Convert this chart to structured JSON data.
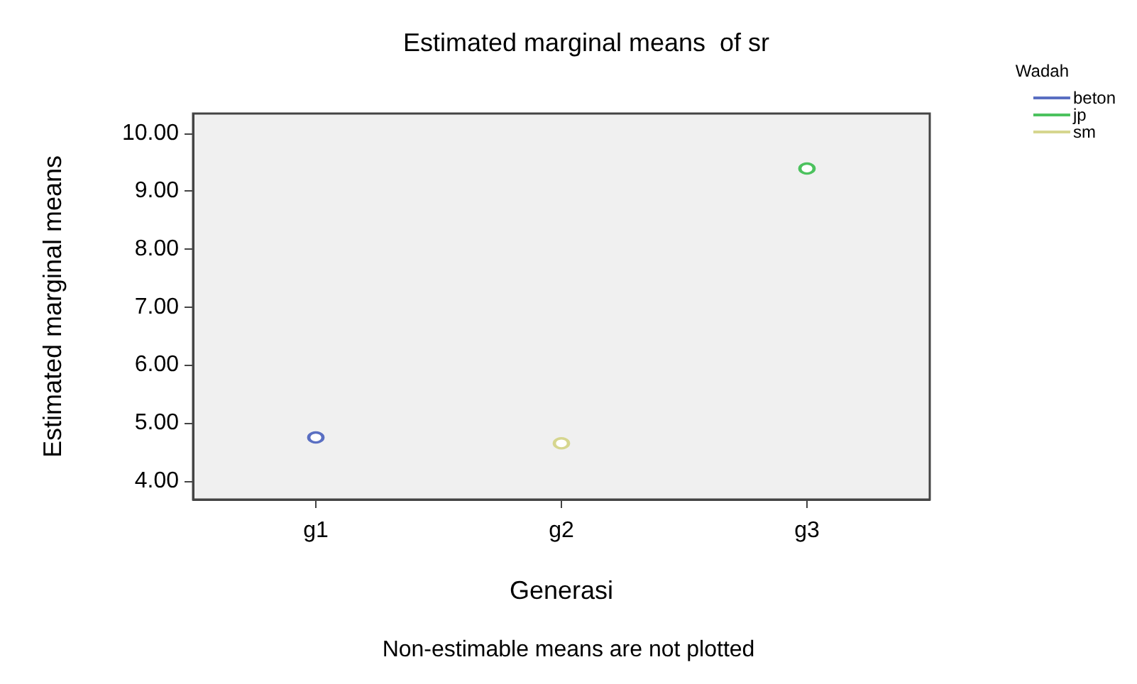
{
  "chart_data": {
    "type": "line",
    "title": "Estimated marginal means  of sr",
    "xlabel": "Generasi",
    "ylabel": "Estimated marginal means",
    "legend_title": "Wadah",
    "annotations": [
      "Non-estimable means are not plotted"
    ],
    "categories": [
      "g1",
      "g2",
      "g3"
    ],
    "series": [
      {
        "name": "beton",
        "color": "#5a6fc2",
        "values": [
          4.75,
          null,
          null
        ]
      },
      {
        "name": "jp",
        "color": "#4cc25e",
        "values": [
          null,
          null,
          9.39
        ]
      },
      {
        "name": "sm",
        "color": "#d6d68f",
        "values": [
          null,
          4.65,
          null
        ]
      }
    ],
    "ylim": [
      3.68,
      10.34
    ],
    "yticks": [
      {
        "value": 4,
        "label": "4.00"
      },
      {
        "value": 5,
        "label": "5.00"
      },
      {
        "value": 6,
        "label": "6.00"
      },
      {
        "value": 7,
        "label": "7.00"
      },
      {
        "value": 8,
        "label": "8.00"
      },
      {
        "value": 9,
        "label": "9.00"
      },
      {
        "value": 10,
        "label": "10.00"
      }
    ],
    "grid": false,
    "legend": "top right",
    "marker": "circle"
  }
}
